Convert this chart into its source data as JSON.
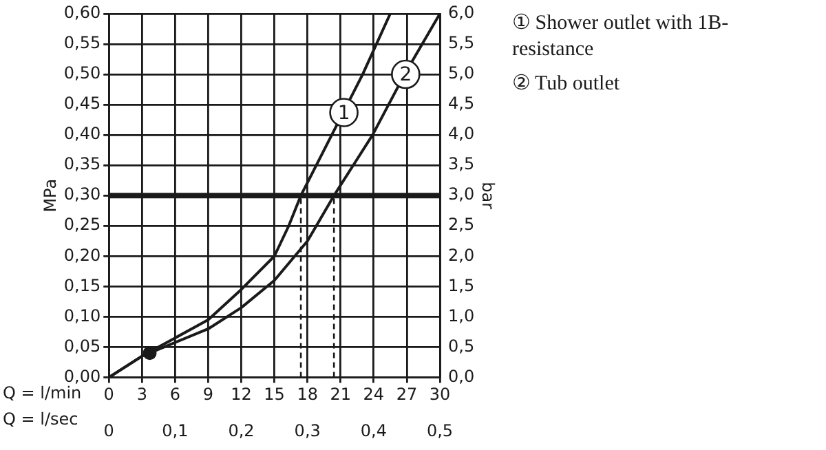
{
  "chart_data": {
    "type": "line",
    "ylabel": "MPa",
    "y2label": "bar",
    "xlabel": "Q = l/min",
    "x2label": "Q = l/sec",
    "series": [
      {
        "name": "① Shower outlet with 1B-resistance",
        "color": "#1a1a1a",
        "x": [
          0,
          3,
          4.5,
          6,
          9,
          12,
          15,
          16.3,
          17.4,
          20.2,
          23,
          25.5
        ],
        "values": [
          0,
          0.035,
          0.05,
          0.065,
          0.095,
          0.145,
          0.2,
          0.25,
          0.3,
          0.4,
          0.5,
          0.6
        ]
      },
      {
        "name": "② Tub outlet",
        "color": "#1a1a1a",
        "x": [
          0,
          3,
          5,
          9,
          12,
          15,
          18,
          20.4,
          23.9,
          26.8,
          30
        ],
        "values": [
          0,
          0.035,
          0.05,
          0.08,
          0.115,
          0.16,
          0.225,
          0.3,
          0.4,
          0.5,
          0.6
        ]
      },
      {
        "type": "scatter",
        "marker": "circle",
        "color": "#1a1a1a",
        "x": [
          3.7
        ],
        "values": [
          0.04
        ]
      }
    ],
    "xlim": [
      0,
      30
    ],
    "xticks": [
      0,
      3,
      6,
      9,
      12,
      15,
      18,
      21,
      24,
      27,
      30
    ],
    "x2lim": [
      0,
      0.5
    ],
    "x2ticks": [
      0,
      {
        "value": 0.1,
        "label": "0,1"
      },
      {
        "value": 0.2,
        "label": "0,2"
      },
      {
        "value": 0.3,
        "label": "0,3"
      },
      {
        "value": 0.4,
        "label": "0,4"
      },
      {
        "value": 0.5,
        "label": "0,5"
      }
    ],
    "ylim": [
      0,
      0.6
    ],
    "yticks": [
      {
        "value": 0,
        "label": "0,00"
      },
      {
        "value": 0.05,
        "label": "0,05"
      },
      {
        "value": 0.1,
        "label": "0,10"
      },
      {
        "value": 0.15,
        "label": "0,15"
      },
      {
        "value": 0.2,
        "label": "0,20"
      },
      {
        "value": 0.25,
        "label": "0,25"
      },
      {
        "value": 0.3,
        "label": "0,30"
      },
      {
        "value": 0.35,
        "label": "0,35"
      },
      {
        "value": 0.4,
        "label": "0,40"
      },
      {
        "value": 0.45,
        "label": "0,45"
      },
      {
        "value": 0.5,
        "label": "0,50"
      },
      {
        "value": 0.55,
        "label": "0,55"
      },
      {
        "value": 0.6,
        "label": "0,60"
      }
    ],
    "y2lim": [
      0,
      6
    ],
    "y2ticks": [
      {
        "value": 0,
        "label": "0,0"
      },
      {
        "value": 0.5,
        "label": "0,5"
      },
      {
        "value": 1,
        "label": "1,0"
      },
      {
        "value": 1.5,
        "label": "1,5"
      },
      {
        "value": 2,
        "label": "2,0"
      },
      {
        "value": 2.5,
        "label": "2,5"
      },
      {
        "value": 3,
        "label": "3,0"
      },
      {
        "value": 3.5,
        "label": "3,5"
      },
      {
        "value": 4,
        "label": "4,0"
      },
      {
        "value": 4.5,
        "label": "4,5"
      },
      {
        "value": 5,
        "label": "5,0"
      },
      {
        "value": 5.5,
        "label": "5,5"
      },
      {
        "value": 6,
        "label": "6,0"
      }
    ],
    "ref_lines": [
      {
        "axis": "y",
        "value": 0.3,
        "color": "#1a1a1a"
      },
      {
        "axis": "x",
        "value": 17.4,
        "color": "#1a1a1a",
        "line_style": "dashed"
      },
      {
        "axis": "x",
        "value": 20.4,
        "color": "#1a1a1a",
        "line_style": "dashed"
      }
    ],
    "annotations": [
      {
        "text": "1",
        "x": 21.3,
        "y": 0.437
      },
      {
        "text": "2",
        "x": 26.9,
        "y": 0.5
      }
    ],
    "grid": true,
    "legend": "right",
    "marker": "none",
    "line_style": "solid"
  }
}
